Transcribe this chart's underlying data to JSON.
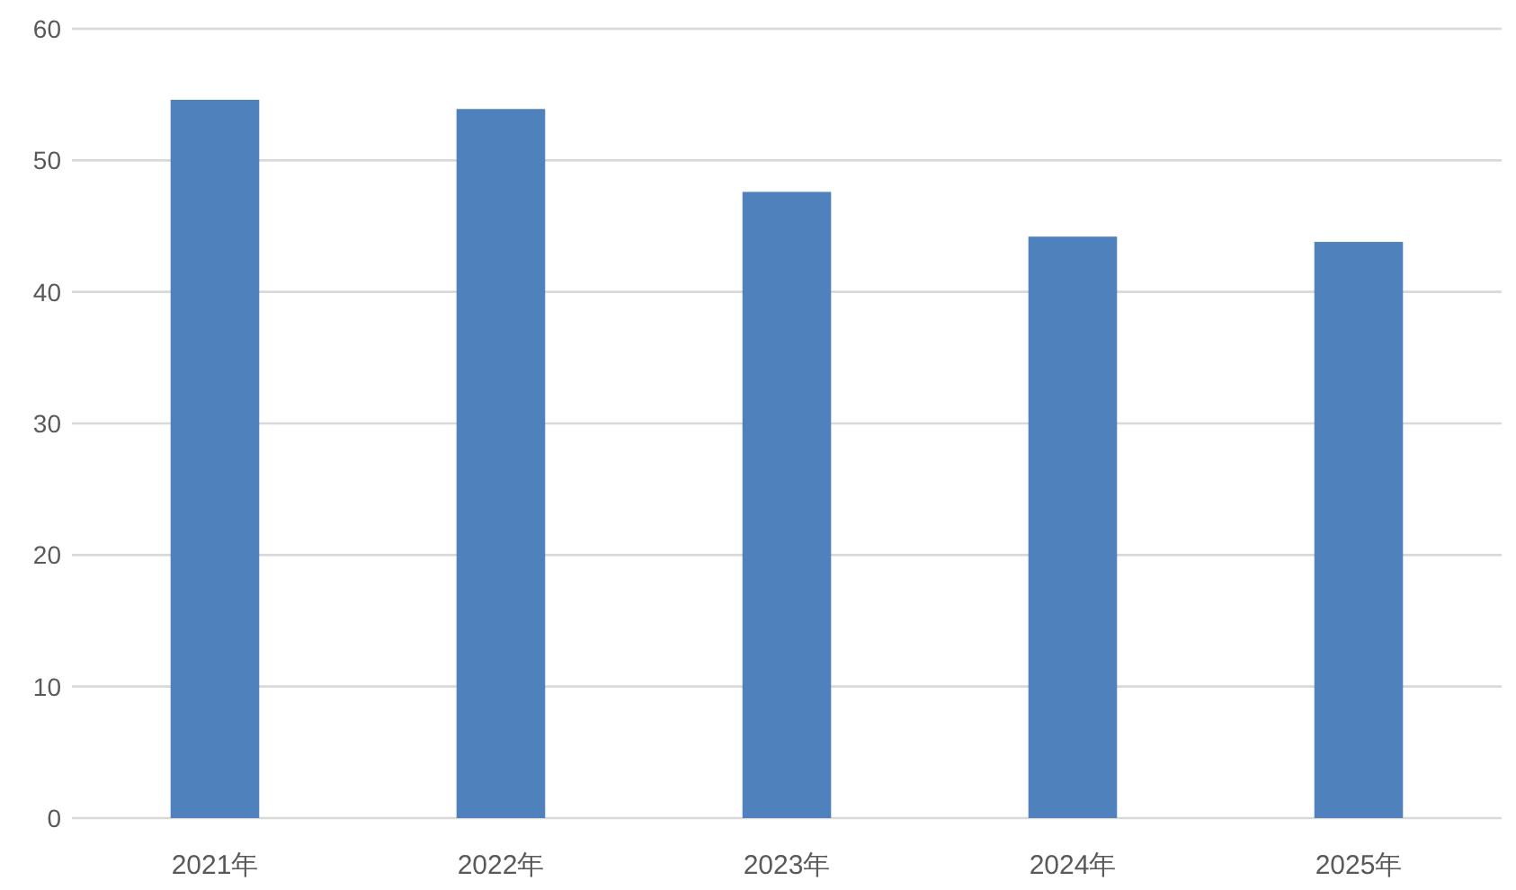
{
  "chart_data": {
    "type": "bar",
    "categories": [
      "2021年",
      "2022年",
      "2023年",
      "2024年",
      "2025年"
    ],
    "values": [
      54.6,
      53.9,
      47.6,
      44.2,
      43.8
    ],
    "color": "#4f81bd",
    "ylim": [
      0,
      60
    ],
    "yticks": [
      0,
      10,
      20,
      30,
      40,
      50,
      60
    ],
    "grid": "y"
  }
}
